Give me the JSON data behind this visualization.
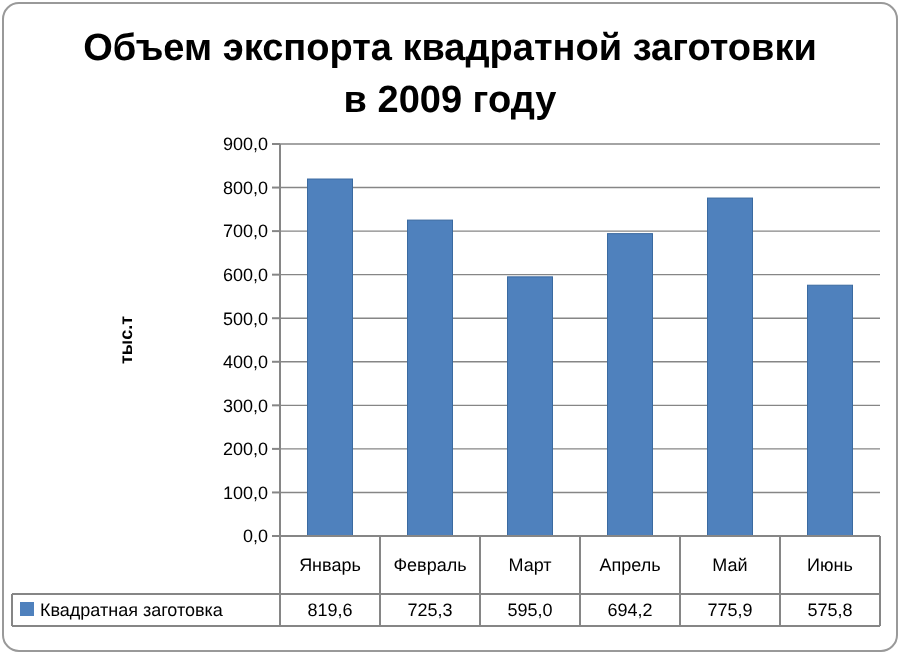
{
  "chart_data": {
    "type": "bar",
    "title": "Объем экспорта квадратной заготовки в 2009 году",
    "ylabel": "тыс.т",
    "categories": [
      "Январь",
      "Февраль",
      "Март",
      "Апрель",
      "Май",
      "Июнь"
    ],
    "series": [
      {
        "name": "Квадратная заготовка",
        "color": "#4f81bd",
        "values": [
          819.6,
          725.3,
          595.0,
          694.2,
          775.9,
          575.8
        ],
        "value_labels": [
          "819,6",
          "725,3",
          "595,0",
          "694,2",
          "775,9",
          "575,8"
        ]
      }
    ],
    "ylim": [
      0,
      900
    ],
    "yticks": [
      {
        "value": 0,
        "label": "0,0"
      },
      {
        "value": 100,
        "label": "100,0"
      },
      {
        "value": 200,
        "label": "200,0"
      },
      {
        "value": 300,
        "label": "300,0"
      },
      {
        "value": 400,
        "label": "400,0"
      },
      {
        "value": 500,
        "label": "500,0"
      },
      {
        "value": 600,
        "label": "600,0"
      },
      {
        "value": 700,
        "label": "700,0"
      },
      {
        "value": 800,
        "label": "800,0"
      },
      {
        "value": 900,
        "label": "900,0"
      }
    ],
    "grid": "y",
    "legend": "bottom"
  }
}
